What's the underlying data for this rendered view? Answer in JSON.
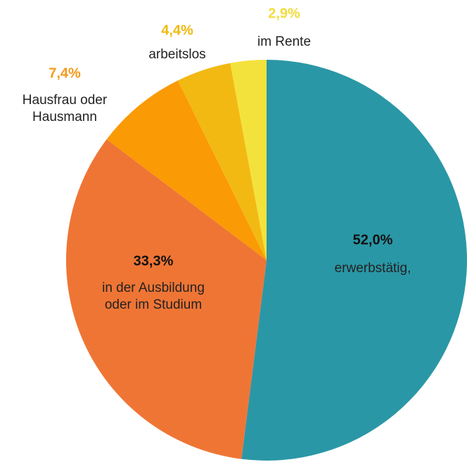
{
  "chart_data": {
    "type": "pie",
    "categories": [
      "erwerbstätig,",
      "in der Ausbildung oder im Studium",
      "Hausfrau oder Hausmann",
      "arbeitslos",
      "im Rente"
    ],
    "values": [
      52.0,
      33.3,
      7.4,
      4.4,
      2.9
    ],
    "value_labels": [
      "52,0%",
      "33,3%",
      "7,4%",
      "4,4%",
      "2,9%"
    ],
    "colors": [
      "#2a97a6",
      "#ef7535",
      "#fa9a05",
      "#f2b913",
      "#f4e23c"
    ]
  }
}
